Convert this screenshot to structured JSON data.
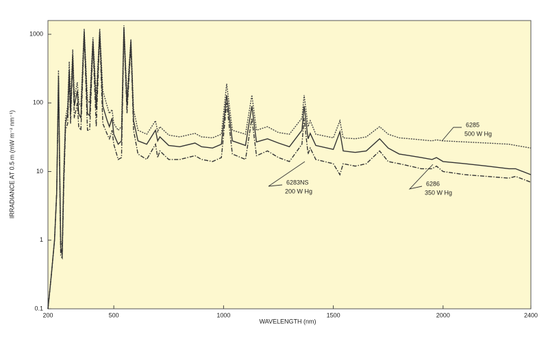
{
  "chart_data": {
    "type": "line",
    "x_label": "WAVELENGTH (nm)",
    "y_label": "IRRADIANCE AT 0.5 m (mW m⁻² nm⁻¹)",
    "x": [
      200,
      215,
      230,
      240,
      248,
      252,
      258,
      265,
      272,
      280,
      290,
      297,
      303,
      313,
      320,
      334,
      340,
      350,
      365,
      380,
      390,
      405,
      420,
      436,
      450,
      470,
      480,
      492,
      500,
      520,
      535,
      546,
      560,
      578,
      590,
      610,
      650,
      690,
      700,
      710,
      750,
      800,
      870,
      900,
      950,
      990,
      1014,
      1040,
      1100,
      1129,
      1150,
      1200,
      1250,
      1300,
      1357,
      1367,
      1385,
      1395,
      1420,
      1500,
      1530,
      1545,
      1600,
      1650,
      1711,
      1750,
      1800,
      1850,
      1900,
      1950,
      1970,
      2000,
      2100,
      2200,
      2300,
      2330,
      2400
    ],
    "series": [
      {
        "name": "6285",
        "lamp": "500 W Hg",
        "color": "#444",
        "dash": "dotted",
        "values": [
          0.1,
          0.3,
          1,
          5,
          300,
          30,
          1,
          0.8,
          10,
          60,
          90,
          400,
          100,
          600,
          120,
          200,
          100,
          90,
          1200,
          110,
          100,
          900,
          120,
          1200,
          150,
          90,
          70,
          80,
          50,
          40,
          45,
          1350,
          120,
          850,
          80,
          40,
          35,
          55,
          38,
          45,
          34,
          32,
          36,
          32,
          31,
          35,
          190,
          40,
          35,
          130,
          40,
          45,
          37,
          35,
          60,
          130,
          45,
          55,
          35,
          31,
          55,
          31,
          30,
          32,
          45,
          35,
          31,
          30,
          29,
          28,
          29,
          28,
          27,
          26,
          25,
          24,
          22
        ]
      },
      {
        "name": "6286",
        "lamp": "350 W Hg",
        "color": "#333",
        "dash": "solid",
        "values": [
          0.1,
          0.3,
          1,
          5,
          250,
          25,
          0.8,
          0.6,
          8,
          50,
          70,
          300,
          70,
          500,
          90,
          150,
          70,
          60,
          1100,
          70,
          65,
          800,
          80,
          1100,
          90,
          55,
          45,
          60,
          35,
          25,
          28,
          1250,
          90,
          800,
          55,
          28,
          25,
          40,
          28,
          32,
          24,
          23,
          26,
          23,
          22,
          25,
          130,
          28,
          24,
          90,
          27,
          30,
          26,
          23,
          40,
          90,
          30,
          36,
          24,
          21,
          38,
          20,
          19,
          20,
          30,
          22,
          18,
          17,
          16,
          15,
          16,
          14,
          13,
          12,
          11,
          11,
          9
        ]
      },
      {
        "name": "6283NS",
        "lamp": "200 W Hg",
        "color": "#333",
        "dash": "dashdot",
        "values": [
          0.1,
          0.3,
          1,
          5,
          200,
          20,
          0.6,
          0.55,
          6,
          40,
          50,
          250,
          50,
          450,
          60,
          100,
          45,
          40,
          1000,
          40,
          40,
          700,
          45,
          1000,
          50,
          35,
          30,
          40,
          25,
          15,
          16,
          1100,
          70,
          700,
          40,
          18,
          15,
          25,
          16,
          20,
          15,
          15,
          17,
          15,
          14,
          16,
          100,
          18,
          15,
          60,
          17,
          20,
          16,
          14,
          25,
          60,
          18,
          22,
          15,
          13,
          9,
          13,
          12,
          13,
          20,
          14,
          13,
          12,
          11,
          11,
          12,
          10,
          9,
          8.5,
          8,
          8.5,
          7
        ]
      }
    ],
    "xlim": [
      200,
      2400
    ],
    "xticks": [
      200,
      500,
      1000,
      1500,
      2000,
      2400
    ],
    "ylim": [
      0.1,
      1585
    ],
    "yticks": [
      0.1,
      1,
      10,
      100,
      1000
    ],
    "log_y": true
  }
}
